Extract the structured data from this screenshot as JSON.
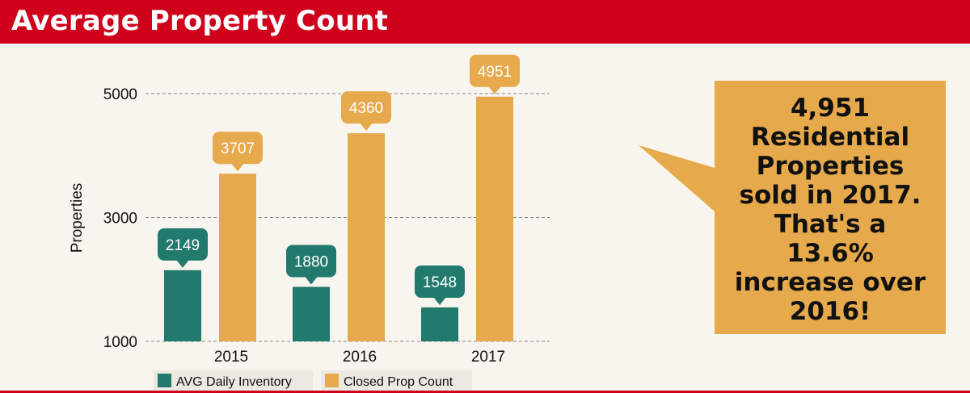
{
  "header": {
    "title": "Average Property Count"
  },
  "colors": {
    "header_bg": "#d0021b",
    "series_inventory": "#22796e",
    "series_closed": "#e6a94c",
    "background": "#f7f5ee"
  },
  "chart_data": {
    "type": "bar",
    "title": "Average Property Count",
    "categories": [
      "2015",
      "2016",
      "2017"
    ],
    "series": [
      {
        "name": "AVG Daily Inventory",
        "values": [
          2149,
          1880,
          1548
        ]
      },
      {
        "name": "Closed Prop Count",
        "values": [
          3707,
          4360,
          4951
        ]
      }
    ],
    "xlabel": "",
    "ylabel": "Properties",
    "ylim": [
      1000,
      5000
    ],
    "yticks": [
      1000,
      3000,
      5000
    ],
    "grid": true,
    "legend": "bottom",
    "data_labels": true
  },
  "callout": {
    "lines": [
      "4,951",
      "Residential",
      "Properties",
      "sold in 2017.",
      "That's a",
      "13.6%",
      "increase over",
      "2016!"
    ]
  }
}
